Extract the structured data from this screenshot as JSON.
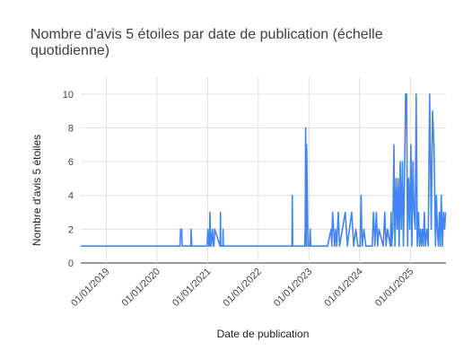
{
  "chart_data": {
    "type": "line",
    "title": "Nombre d'avis 5 étoiles par date de publication (échelle quotidienne)",
    "xlabel": "Date de publication",
    "ylabel": "Nombre d'avis 5 étoiles",
    "xlim": [
      "2018-07-01",
      "2025-09-15"
    ],
    "ylim": [
      0,
      11
    ],
    "yticks": [
      0,
      2,
      4,
      6,
      8,
      10
    ],
    "xticks": [
      "01/01/2019",
      "01/01/2020",
      "01/01/2021",
      "01/01/2022",
      "01/01/2023",
      "01/01/2024",
      "01/01/2025"
    ],
    "grid": true,
    "legend": "none",
    "line_color": "#4285f4",
    "series": [
      {
        "x": [
          "2018-07-01",
          "2020-06-15",
          "2020-06-20",
          "2020-06-27",
          "2020-07-01",
          "2020-09-01",
          "2020-09-04",
          "2020-09-08",
          "2020-12-25",
          "2020-12-28",
          "2021-01-03",
          "2021-01-10",
          "2021-01-14",
          "2021-01-17",
          "2021-01-20",
          "2021-01-25",
          "2021-02-05",
          "2021-02-10",
          "2021-02-15",
          "2021-02-20",
          "2021-04-01",
          "2021-04-03",
          "2021-04-05",
          "2021-04-20",
          "2021-04-22",
          "2021-04-24",
          "2022-09-01",
          "2022-09-03",
          "2022-09-06",
          "2022-12-01",
          "2022-12-05",
          "2022-12-08",
          "2022-12-12",
          "2022-12-15",
          "2022-12-20",
          "2022-12-25",
          "2023-01-05",
          "2023-01-10",
          "2023-01-15",
          "2023-05-15",
          "2023-06-10",
          "2023-06-15",
          "2023-06-20",
          "2023-07-05",
          "2023-07-12",
          "2023-07-20",
          "2023-08-01",
          "2023-08-10",
          "2023-09-20",
          "2023-10-05",
          "2023-10-20",
          "2023-11-05",
          "2023-11-20",
          "2023-12-05",
          "2023-12-20",
          "2024-01-05",
          "2024-01-12",
          "2024-01-20",
          "2024-02-01",
          "2024-02-15",
          "2024-04-01",
          "2024-04-10",
          "2024-04-20",
          "2024-05-01",
          "2024-05-10",
          "2024-05-20",
          "2024-06-20",
          "2024-07-01",
          "2024-07-10",
          "2024-07-20",
          "2024-08-10",
          "2024-08-15",
          "2024-08-20",
          "2024-08-28",
          "2024-09-05",
          "2024-09-12",
          "2024-09-20",
          "2024-09-28",
          "2024-10-05",
          "2024-10-12",
          "2024-10-20",
          "2024-10-28",
          "2024-11-05",
          "2024-11-12",
          "2024-11-20",
          "2024-11-28",
          "2024-12-05",
          "2024-12-12",
          "2024-12-20",
          "2024-12-28",
          "2025-01-05",
          "2025-01-12",
          "2025-01-20",
          "2025-01-28",
          "2025-02-05",
          "2025-02-12",
          "2025-02-20",
          "2025-03-01",
          "2025-03-08",
          "2025-03-15",
          "2025-03-22",
          "2025-03-29",
          "2025-04-05",
          "2025-04-12",
          "2025-04-20",
          "2025-05-01",
          "2025-05-10",
          "2025-05-20",
          "2025-06-01",
          "2025-06-10",
          "2025-06-20",
          "2025-07-01",
          "2025-07-08",
          "2025-07-15",
          "2025-07-22",
          "2025-07-29",
          "2025-08-05",
          "2025-08-12",
          "2025-08-20",
          "2025-08-28",
          "2025-09-05",
          "2025-09-12"
        ],
        "values": [
          1,
          1,
          2,
          2,
          1,
          1,
          2,
          1,
          1,
          1,
          2,
          1,
          1,
          3,
          2,
          1,
          2,
          1,
          1,
          2,
          1,
          3,
          1,
          1,
          2,
          1,
          1,
          4,
          1,
          1,
          2,
          8,
          1,
          7,
          4,
          1,
          1,
          2,
          1,
          1,
          2,
          1,
          3,
          1,
          2,
          1,
          3,
          1,
          3,
          1,
          2,
          3,
          1,
          2,
          1,
          1,
          4,
          1,
          2,
          1,
          1,
          3,
          1,
          3,
          1,
          2,
          1,
          3,
          1,
          2,
          1,
          3,
          1,
          2,
          7,
          1,
          5,
          2,
          5,
          1,
          6,
          2,
          6,
          1,
          5,
          10,
          10,
          1,
          5,
          2,
          7,
          1,
          6,
          3,
          2,
          10,
          1,
          3,
          1,
          2,
          1,
          2,
          1,
          3,
          1,
          2,
          1,
          10,
          2,
          9,
          7,
          1,
          4,
          2,
          1,
          3,
          1,
          4,
          1,
          3,
          2,
          3
        ]
      }
    ]
  }
}
